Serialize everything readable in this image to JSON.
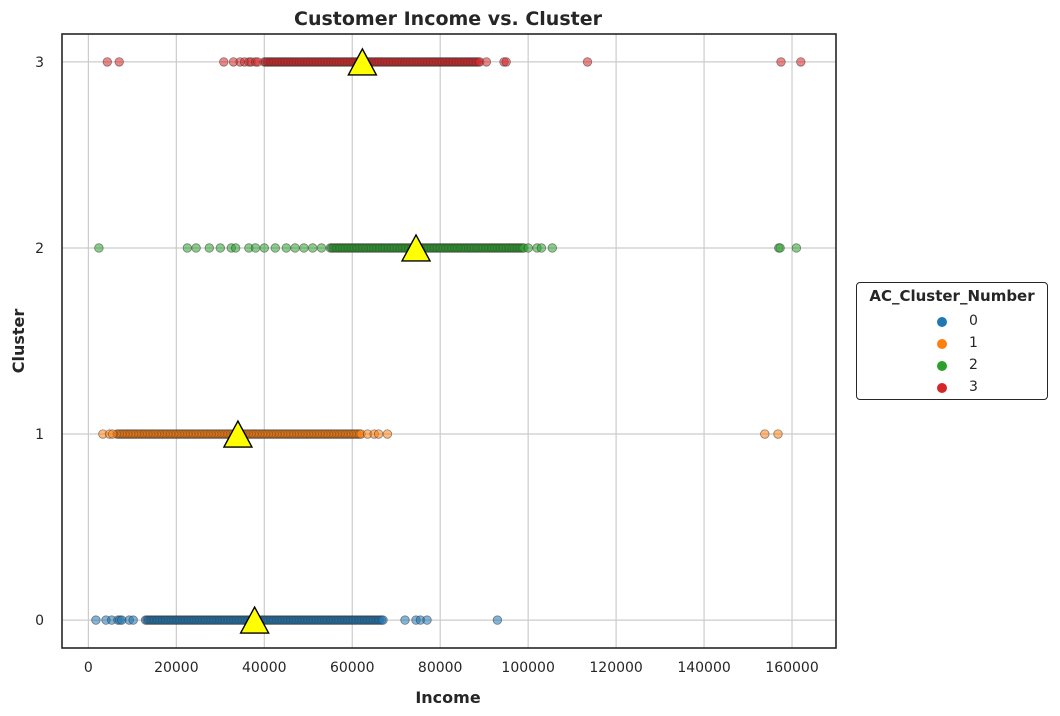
{
  "chart_data": {
    "type": "scatter",
    "title": "Customer Income vs. Cluster",
    "xlabel": "Income",
    "ylabel": "Cluster",
    "xlim": [
      -6000,
      170000
    ],
    "ylim": [
      -0.15,
      3.15
    ],
    "xticks": [
      0,
      20000,
      40000,
      60000,
      80000,
      100000,
      120000,
      140000,
      160000
    ],
    "xtick_labels": [
      "0",
      "20000",
      "40000",
      "60000",
      "80000",
      "100000",
      "120000",
      "140000",
      "160000"
    ],
    "yticks": [
      0,
      1,
      2,
      3
    ],
    "ytick_labels": [
      "0",
      "1",
      "2",
      "3"
    ],
    "grid": true,
    "legend": {
      "title": "AC_Cluster_Number",
      "placement": "right",
      "entries": [
        {
          "label": "0",
          "color": "#1f77b4"
        },
        {
          "label": "1",
          "color": "#ff7f0e"
        },
        {
          "label": "2",
          "color": "#2ca02c"
        },
        {
          "label": "3",
          "color": "#d62728"
        }
      ]
    },
    "centroid_marker": {
      "shape": "triangle",
      "color": "#ffff00"
    },
    "series": [
      {
        "name": "0",
        "y": 0,
        "color": "#1f77b4",
        "dense_range": [
          13000,
          67000
        ],
        "x_outliers": [
          1700,
          4000,
          5300,
          6700,
          7200,
          7600,
          9300,
          10200,
          72000,
          74500,
          75500,
          77000,
          93000
        ],
        "centroid": 37800
      },
      {
        "name": "1",
        "y": 1,
        "color": "#ff7f0e",
        "dense_range": [
          6500,
          62000
        ],
        "x_outliers": [
          3300,
          4800,
          5500,
          63500,
          65000,
          66000,
          68000,
          153800,
          156800
        ],
        "centroid": 34000
      },
      {
        "name": "2",
        "y": 2,
        "color": "#2ca02c",
        "dense_range": [
          55000,
          99000
        ],
        "x_outliers": [
          2400,
          22500,
          24500,
          27500,
          30000,
          32500,
          33500,
          36500,
          38000,
          40000,
          42500,
          45000,
          47000,
          49000,
          51000,
          53000,
          100000,
          102000,
          103000,
          105500,
          157000,
          157300,
          161000
        ],
        "centroid": 74500
      },
      {
        "name": "3",
        "y": 3,
        "color": "#d62728",
        "dense_range": [
          40000,
          89000
        ],
        "x_outliers": [
          4300,
          7000,
          30800,
          33000,
          34500,
          35500,
          36500,
          37000,
          38000,
          38500,
          90500,
          94500,
          95000,
          113500,
          157500,
          162000
        ],
        "centroid": 62300
      }
    ]
  }
}
